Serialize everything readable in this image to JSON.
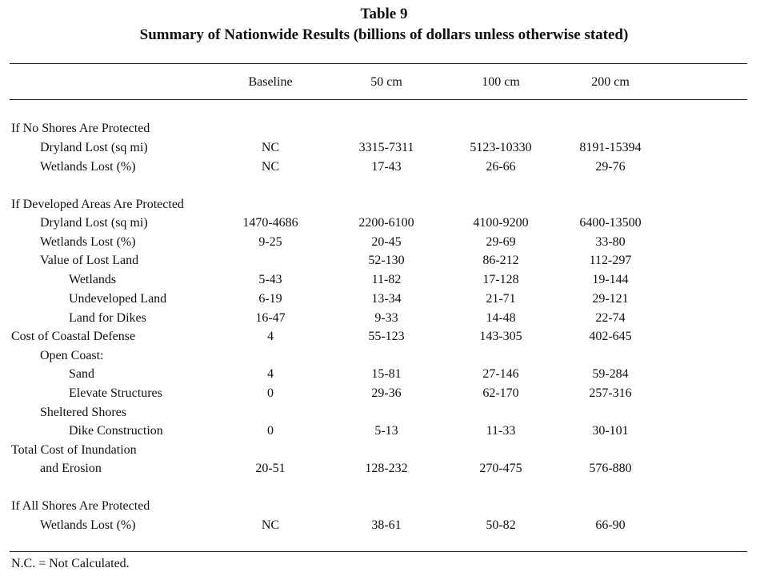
{
  "title": {
    "line1": "Table 9",
    "line2": "Summary of Nationwide Results (billions of dollars unless otherwise stated)"
  },
  "columns": [
    "Baseline",
    "50 cm",
    "100 cm",
    "200 cm"
  ],
  "rows": [
    {
      "label": "If No Shores Are Protected",
      "indent": 0,
      "values": [
        "",
        "",
        "",
        ""
      ]
    },
    {
      "label": "Dryland Lost (sq mi)",
      "indent": 1,
      "values": [
        "NC",
        "3315-7311",
        "5123-10330",
        "8191-15394"
      ]
    },
    {
      "label": "Wetlands Lost (%)",
      "indent": 1,
      "values": [
        "NC",
        "17-43",
        "26-66",
        "29-76"
      ]
    },
    {
      "label": "If Developed Areas Are Protected",
      "indent": 0,
      "values": [
        "",
        "",
        "",
        ""
      ]
    },
    {
      "label": "Dryland Lost (sq mi)",
      "indent": 1,
      "values": [
        "1470-4686",
        "2200-6100",
        "4100-9200",
        "6400-13500"
      ]
    },
    {
      "label": "Wetlands Lost (%)",
      "indent": 1,
      "values": [
        "9-25",
        "20-45",
        "29-69",
        "33-80"
      ]
    },
    {
      "label": "Value of Lost Land",
      "indent": 1,
      "values": [
        "",
        "52-130",
        "86-212",
        "112-297"
      ]
    },
    {
      "label": "Wetlands",
      "indent": 2,
      "values": [
        "5-43",
        "11-82",
        "17-128",
        "19-144"
      ]
    },
    {
      "label": "Undeveloped Land",
      "indent": 2,
      "values": [
        "6-19",
        "13-34",
        "21-71",
        "29-121"
      ]
    },
    {
      "label": "Land for Dikes",
      "indent": 2,
      "values": [
        "16-47",
        "9-33",
        "14-48",
        "22-74"
      ]
    },
    {
      "label": "Cost of Coastal Defense",
      "indent": 0,
      "values": [
        "4",
        "55-123",
        "143-305",
        "402-645"
      ]
    },
    {
      "label": "Open Coast:",
      "indent": 1,
      "values": [
        "",
        "",
        "",
        ""
      ]
    },
    {
      "label": "Sand",
      "indent": 2,
      "values": [
        "4",
        "15-81",
        "27-146",
        "59-284"
      ]
    },
    {
      "label": "Elevate Structures",
      "indent": 2,
      "values": [
        "0",
        "29-36",
        "62-170",
        "257-316"
      ]
    },
    {
      "label": "Sheltered Shores",
      "indent": 1,
      "values": [
        "",
        "",
        "",
        ""
      ]
    },
    {
      "label": "Dike Construction",
      "indent": 2,
      "values": [
        "0",
        "5-13",
        "11-33",
        "30-101"
      ]
    },
    {
      "label": "Total Cost of Inundation",
      "indent": 0,
      "values": [
        "",
        "",
        "",
        ""
      ]
    },
    {
      "label": "and Erosion",
      "indent": 1,
      "values": [
        "20-51",
        "128-232",
        "270-475",
        "576-880"
      ]
    },
    {
      "label": "If All Shores Are Protected",
      "indent": 0,
      "values": [
        "",
        "",
        "",
        ""
      ]
    },
    {
      "label": "Wetlands Lost (%)",
      "indent": 1,
      "values": [
        "NC",
        "38-61",
        "50-82",
        "66-90"
      ]
    }
  ],
  "footnote": "N.C. = Not Calculated."
}
